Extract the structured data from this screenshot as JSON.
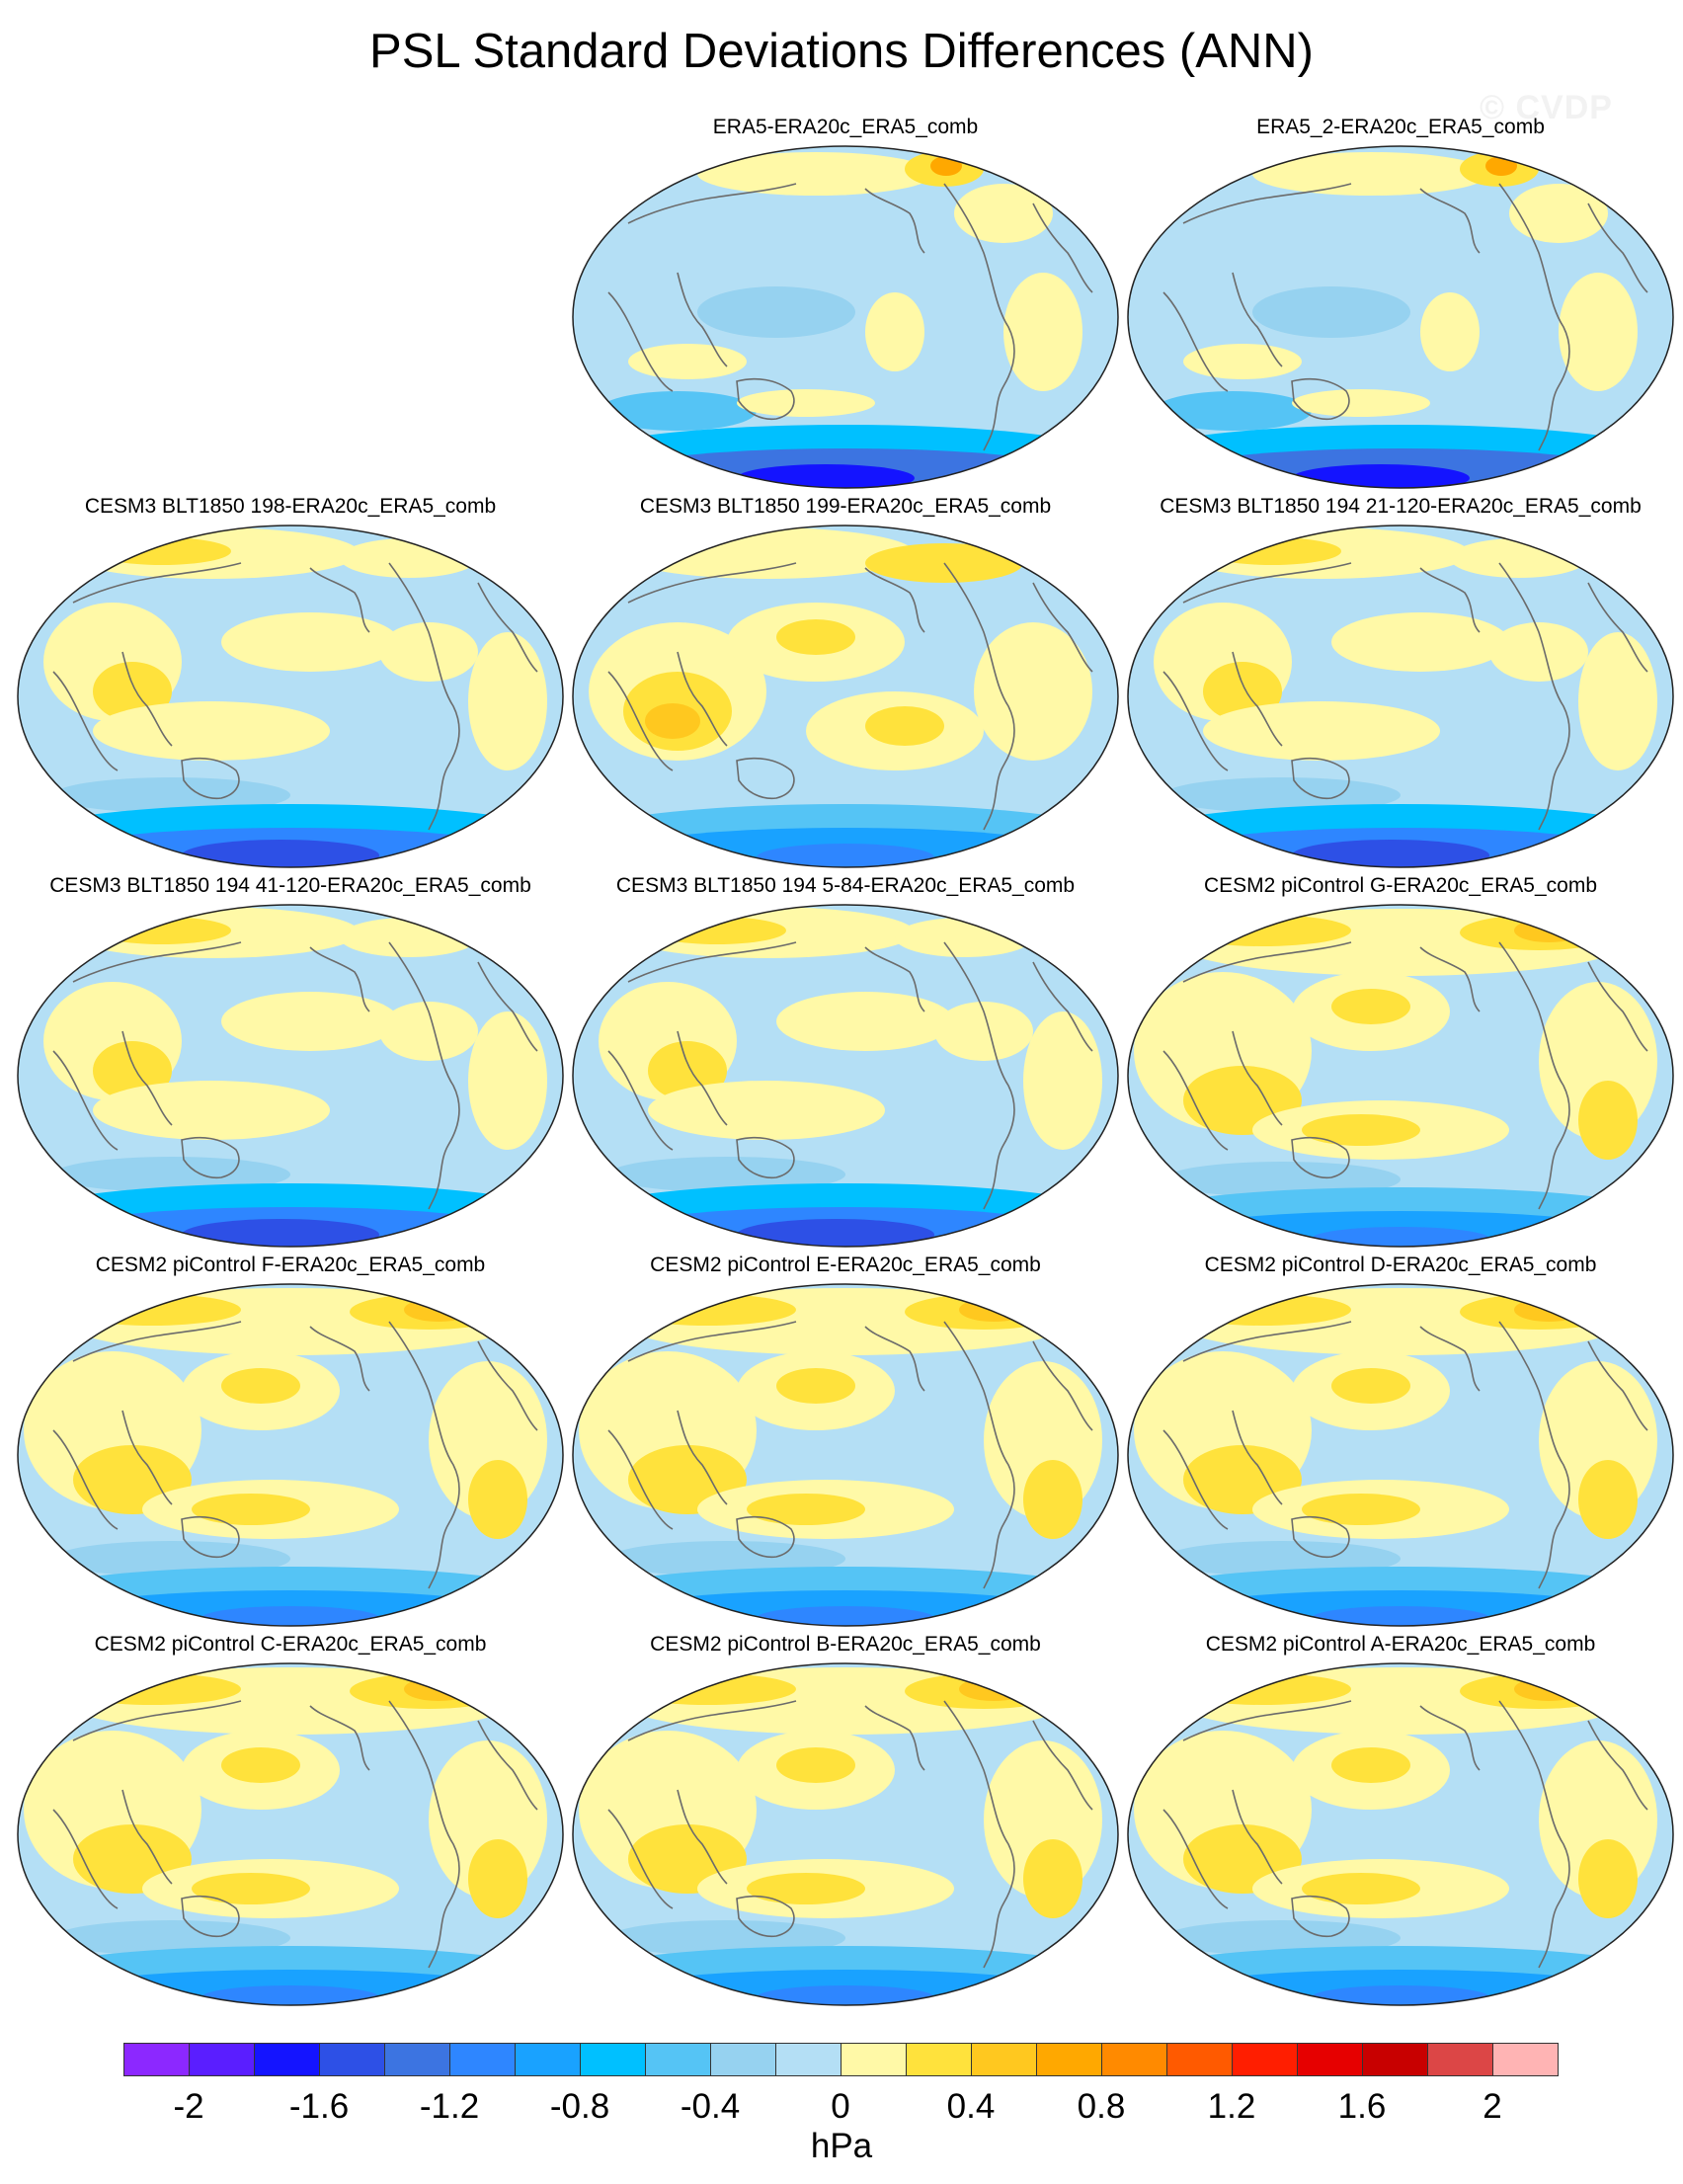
{
  "title": "PSL Standard Deviations Differences (ANN)",
  "watermark": "© CVDP",
  "units": "hPa",
  "colorbar": {
    "colors": [
      "#8c28ff",
      "#5a1eff",
      "#1414ff",
      "#2d50e6",
      "#3c74e1",
      "#2e86ff",
      "#19a2ff",
      "#00c0ff",
      "#55c4f5",
      "#96d2f0",
      "#b4dff5",
      "#fff9a7",
      "#ffe23c",
      "#ffc81f",
      "#ffa800",
      "#ff8a00",
      "#ff5a00",
      "#ff1e00",
      "#e60000",
      "#c80000",
      "#dc4646",
      "#ffb4b4"
    ],
    "tick_labels": [
      "-2",
      "-1.6",
      "-1.2",
      "-0.8",
      "-0.4",
      "0",
      "0.4",
      "0.8",
      "1.2",
      "1.6",
      "2"
    ]
  },
  "panels": [
    {
      "title": "ERA5-ERA20c_ERA5_comb",
      "pattern": 0
    },
    {
      "title": "ERA5_2-ERA20c_ERA5_comb",
      "pattern": 0
    },
    {
      "title": "CESM3 BLT1850 198-ERA20c_ERA5_comb",
      "pattern": 1
    },
    {
      "title": "CESM3 BLT1850 199-ERA20c_ERA5_comb",
      "pattern": 2
    },
    {
      "title": "CESM3 BLT1850 194 21-120-ERA20c_ERA5_comb",
      "pattern": 1
    },
    {
      "title": "CESM3 BLT1850 194 41-120-ERA20c_ERA5_comb",
      "pattern": 1
    },
    {
      "title": "CESM3 BLT1850 194 5-84-ERA20c_ERA5_comb",
      "pattern": 1
    },
    {
      "title": "CESM2 piControl G-ERA20c_ERA5_comb",
      "pattern": 3
    },
    {
      "title": "CESM2 piControl F-ERA20c_ERA5_comb",
      "pattern": 3
    },
    {
      "title": "CESM2 piControl E-ERA20c_ERA5_comb",
      "pattern": 3
    },
    {
      "title": "CESM2 piControl D-ERA20c_ERA5_comb",
      "pattern": 3
    },
    {
      "title": "CESM2 piControl C-ERA20c_ERA5_comb",
      "pattern": 3
    },
    {
      "title": "CESM2 piControl B-ERA20c_ERA5_comb",
      "pattern": 3
    },
    {
      "title": "CESM2 piControl A-ERA20c_ERA5_comb",
      "pattern": 3
    }
  ]
}
